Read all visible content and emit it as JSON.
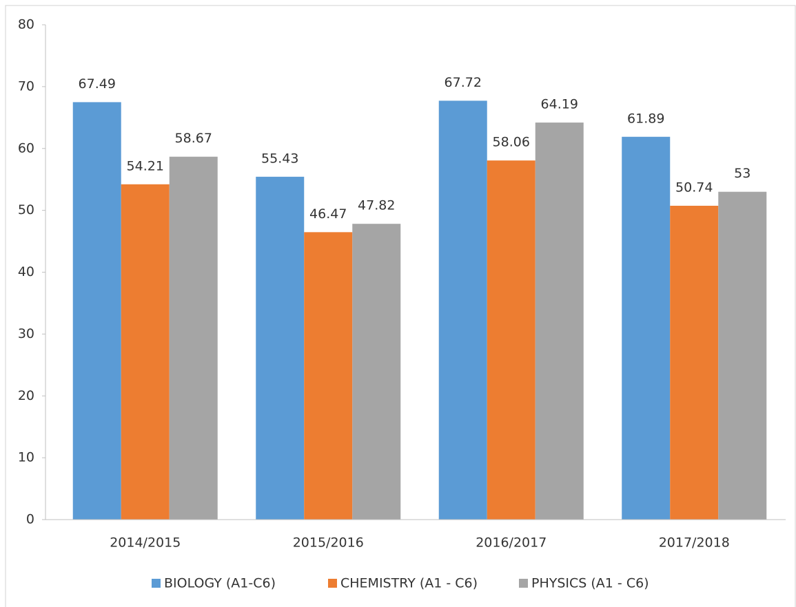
{
  "chart_data": {
    "type": "bar",
    "categories": [
      "2014/2015",
      "2015/2016",
      "2016/2017",
      "2017/2018"
    ],
    "series": [
      {
        "name": "BIOLOGY (A1-C6)",
        "color": "#5b9bd5",
        "values": [
          67.49,
          55.43,
          67.72,
          61.89
        ]
      },
      {
        "name": "CHEMISTRY (A1 - C6)",
        "color": "#ed7d31",
        "values": [
          54.21,
          46.47,
          58.06,
          50.74
        ]
      },
      {
        "name": "PHYSICS (A1 - C6)",
        "color": "#a5a5a5",
        "values": [
          58.67,
          47.82,
          64.19,
          53
        ]
      }
    ],
    "ylim": [
      0,
      80
    ],
    "yticks": [
      0,
      10,
      20,
      30,
      40,
      50,
      60,
      70,
      80
    ],
    "grid": false,
    "legend": "bottom"
  }
}
